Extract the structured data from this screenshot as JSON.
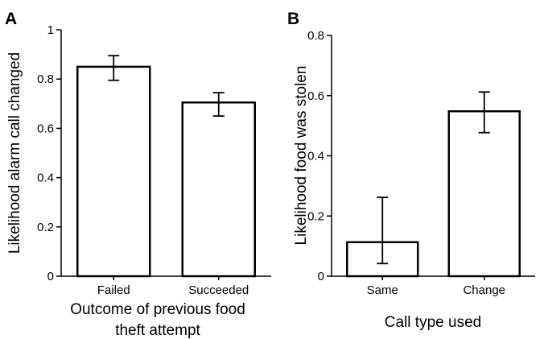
{
  "chart_data": [
    {
      "panel": "A",
      "type": "bar",
      "categories": [
        "Failed",
        "Succeeded"
      ],
      "values": [
        0.85,
        0.705
      ],
      "error_low": [
        0.795,
        0.65
      ],
      "error_high": [
        0.895,
        0.745
      ],
      "ylim": [
        0,
        1
      ],
      "yticks": [
        "0",
        "0.2",
        "0.4",
        "0.6",
        "0.8",
        "1"
      ],
      "ylabel": "Likelihood alarm call changed",
      "xlabel_lines": [
        "Outcome of previous food",
        "theft attempt"
      ],
      "grid": false,
      "legend": "none"
    },
    {
      "panel": "B",
      "type": "bar",
      "categories": [
        "Same",
        "Change"
      ],
      "values": [
        0.113,
        0.548
      ],
      "error_low": [
        0.042,
        0.477
      ],
      "error_high": [
        0.262,
        0.612
      ],
      "ylim": [
        0,
        0.8
      ],
      "yticks": [
        "0",
        "0.2",
        "0.4",
        "0.6",
        "0.8"
      ],
      "ylabel": "Likelihood food was stolen",
      "xlabel_lines": [
        "Call type used"
      ],
      "grid": false,
      "legend": "none"
    }
  ]
}
